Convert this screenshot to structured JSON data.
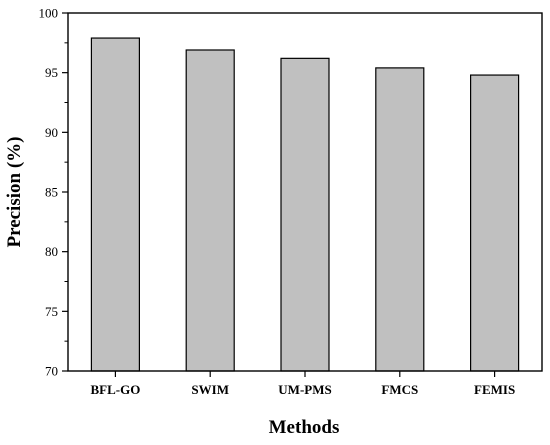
{
  "chart_data": {
    "type": "bar",
    "categories": [
      "BFL-GO",
      "SWIM",
      "UM-PMS",
      "FMCS",
      "FEMIS"
    ],
    "values": [
      97.9,
      96.9,
      96.2,
      95.4,
      94.8
    ],
    "xlabel": "Methods",
    "ylabel": "Precision (%)",
    "ylim": [
      70,
      100
    ],
    "yticks": [
      70,
      75,
      80,
      85,
      90,
      95,
      100
    ],
    "grid": false,
    "colors": {
      "bar_fill": "#c0c0c0",
      "bar_stroke": "#000000",
      "axis": "#000000"
    }
  }
}
